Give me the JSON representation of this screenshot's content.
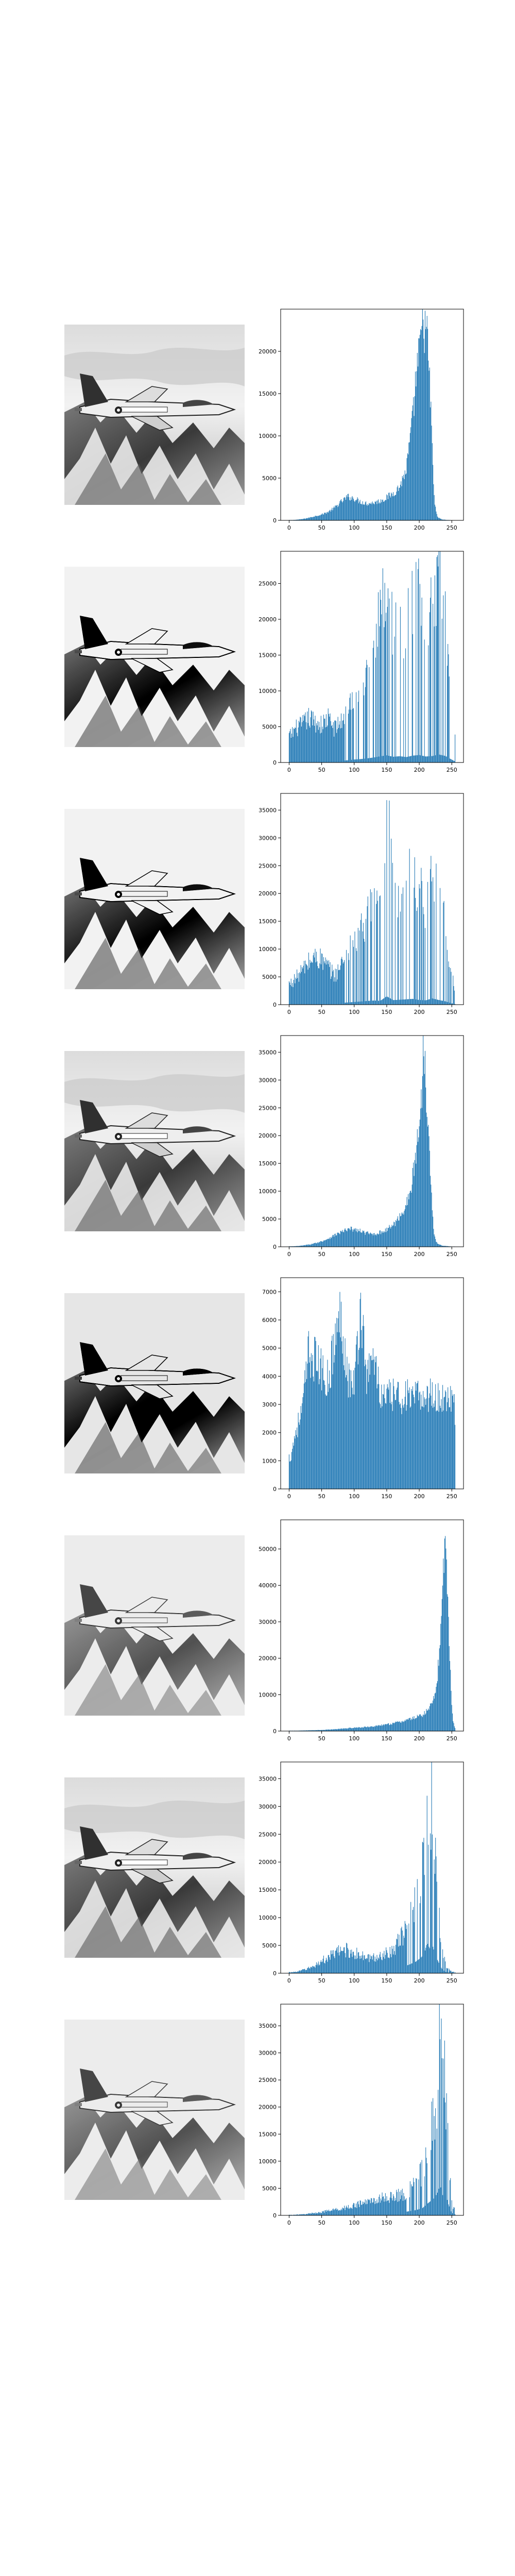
{
  "figure": {
    "background": "#ffffff",
    "bar_color": "#1f77b4",
    "axes_color": "#000000"
  },
  "chart_data": [
    {
      "type": "bar",
      "title": "",
      "xlabel": "",
      "ylabel": "",
      "xlim": [
        -13,
        268
      ],
      "ylim": [
        0,
        25000
      ],
      "xticks": [
        0,
        50,
        100,
        150,
        200,
        250
      ],
      "yticks": [
        0,
        5000,
        10000,
        15000,
        20000
      ],
      "image_style": "original",
      "peaks": [
        [
          5,
          40
        ],
        [
          12,
          80
        ],
        [
          20,
          150
        ],
        [
          30,
          300
        ],
        [
          40,
          500
        ],
        [
          50,
          700
        ],
        [
          60,
          1000
        ],
        [
          70,
          1500
        ],
        [
          80,
          2200
        ],
        [
          90,
          2800
        ],
        [
          100,
          2600
        ],
        [
          110,
          2200
        ],
        [
          120,
          2000
        ],
        [
          130,
          2100
        ],
        [
          140,
          2300
        ],
        [
          150,
          2700
        ],
        [
          160,
          3200
        ],
        [
          170,
          4000
        ],
        [
          180,
          6000
        ],
        [
          190,
          12000
        ],
        [
          195,
          17000
        ],
        [
          200,
          19500
        ],
        [
          203,
          22000
        ],
        [
          206,
          23500
        ],
        [
          209,
          23000
        ],
        [
          212,
          21500
        ],
        [
          215,
          18000
        ],
        [
          218,
          13000
        ],
        [
          221,
          6000
        ],
        [
          224,
          1800
        ],
        [
          228,
          400
        ],
        [
          235,
          100
        ],
        [
          245,
          40
        ],
        [
          255,
          20
        ]
      ],
      "shape": "smooth"
    },
    {
      "type": "bar",
      "title": "",
      "xlabel": "",
      "ylabel": "",
      "xlim": [
        -13,
        268
      ],
      "ylim": [
        0,
        29500
      ],
      "xticks": [
        0,
        50,
        100,
        150,
        200,
        250
      ],
      "yticks": [
        0,
        5000,
        10000,
        15000,
        20000,
        25000
      ],
      "image_style": "high-contrast",
      "peaks": [
        [
          2,
          4000
        ],
        [
          10,
          5000
        ],
        [
          20,
          5500
        ],
        [
          30,
          6500
        ],
        [
          40,
          6000
        ],
        [
          50,
          5500
        ],
        [
          60,
          6500
        ],
        [
          70,
          5000
        ],
        [
          80,
          6000
        ],
        [
          90,
          8000
        ],
        [
          100,
          10500
        ],
        [
          110,
          12000
        ],
        [
          120,
          14500
        ],
        [
          130,
          17500
        ],
        [
          140,
          21500
        ],
        [
          150,
          25000
        ],
        [
          160,
          20000
        ],
        [
          170,
          22000
        ],
        [
          180,
          19000
        ],
        [
          190,
          24000
        ],
        [
          200,
          26000
        ],
        [
          210,
          21000
        ],
        [
          220,
          22500
        ],
        [
          230,
          28000
        ],
        [
          240,
          23000
        ],
        [
          250,
          10000
        ],
        [
          255,
          4000
        ]
      ],
      "shape": "spiky"
    },
    {
      "type": "bar",
      "title": "",
      "xlabel": "",
      "ylabel": "",
      "xlim": [
        -13,
        268
      ],
      "ylim": [
        0,
        38000
      ],
      "xticks": [
        0,
        50,
        100,
        150,
        200,
        250
      ],
      "yticks": [
        0,
        5000,
        10000,
        15000,
        20000,
        25000,
        30000,
        35000
      ],
      "image_style": "high-contrast",
      "peaks": [
        [
          2,
          4000
        ],
        [
          10,
          5000
        ],
        [
          20,
          6500
        ],
        [
          30,
          8000
        ],
        [
          40,
          9000
        ],
        [
          50,
          8500
        ],
        [
          60,
          7000
        ],
        [
          70,
          5500
        ],
        [
          80,
          7500
        ],
        [
          90,
          10000
        ],
        [
          100,
          12000
        ],
        [
          110,
          14000
        ],
        [
          120,
          16500
        ],
        [
          130,
          18500
        ],
        [
          140,
          17000
        ],
        [
          150,
          37500
        ],
        [
          160,
          20500
        ],
        [
          170,
          22000
        ],
        [
          180,
          24000
        ],
        [
          190,
          26000
        ],
        [
          200,
          21000
        ],
        [
          210,
          19500
        ],
        [
          220,
          28000
        ],
        [
          230,
          21000
        ],
        [
          240,
          15000
        ],
        [
          250,
          6000
        ],
        [
          255,
          3000
        ]
      ],
      "shape": "spiky"
    },
    {
      "type": "bar",
      "title": "",
      "xlabel": "",
      "ylabel": "",
      "xlim": [
        -13,
        268
      ],
      "ylim": [
        0,
        38000
      ],
      "xticks": [
        0,
        50,
        100,
        150,
        200,
        250
      ],
      "yticks": [
        0,
        5000,
        10000,
        15000,
        20000,
        25000,
        30000,
        35000
      ],
      "image_style": "original",
      "peaks": [
        [
          5,
          80
        ],
        [
          15,
          150
        ],
        [
          25,
          300
        ],
        [
          35,
          500
        ],
        [
          45,
          800
        ],
        [
          55,
          1200
        ],
        [
          65,
          1800
        ],
        [
          75,
          2400
        ],
        [
          85,
          2900
        ],
        [
          95,
          3200
        ],
        [
          105,
          3000
        ],
        [
          115,
          2600
        ],
        [
          125,
          2300
        ],
        [
          135,
          2400
        ],
        [
          145,
          2800
        ],
        [
          155,
          3500
        ],
        [
          165,
          4500
        ],
        [
          175,
          6500
        ],
        [
          185,
          9000
        ],
        [
          192,
          14000
        ],
        [
          198,
          20000
        ],
        [
          203,
          26000
        ],
        [
          207,
          37500
        ],
        [
          210,
          30000
        ],
        [
          213,
          25000
        ],
        [
          216,
          18000
        ],
        [
          219,
          9000
        ],
        [
          222,
          3000
        ],
        [
          226,
          800
        ],
        [
          235,
          200
        ],
        [
          250,
          50
        ]
      ],
      "shape": "smooth"
    },
    {
      "type": "bar",
      "title": "",
      "xlabel": "",
      "ylabel": "",
      "xlim": [
        -13,
        268
      ],
      "ylim": [
        0,
        7500
      ],
      "xticks": [
        0,
        50,
        100,
        150,
        200,
        250
      ],
      "yticks": [
        0,
        1000,
        2000,
        3000,
        4000,
        5000,
        6000,
        7000
      ],
      "image_style": "equalized",
      "peaks": [
        [
          2,
          1200
        ],
        [
          10,
          2200
        ],
        [
          20,
          3000
        ],
        [
          30,
          5200
        ],
        [
          40,
          5000
        ],
        [
          50,
          4500
        ],
        [
          60,
          4200
        ],
        [
          70,
          5600
        ],
        [
          80,
          6800
        ],
        [
          90,
          4300
        ],
        [
          100,
          4000
        ],
        [
          110,
          7000
        ],
        [
          120,
          4200
        ],
        [
          130,
          5200
        ],
        [
          140,
          3600
        ],
        [
          150,
          3500
        ],
        [
          160,
          3600
        ],
        [
          170,
          3500
        ],
        [
          180,
          3600
        ],
        [
          190,
          3400
        ],
        [
          200,
          3600
        ],
        [
          210,
          3500
        ],
        [
          220,
          3700
        ],
        [
          230,
          3400
        ],
        [
          240,
          3600
        ],
        [
          250,
          3500
        ],
        [
          255,
          3000
        ]
      ],
      "shape": "equalized"
    },
    {
      "type": "bar",
      "title": "",
      "xlabel": "",
      "ylabel": "",
      "xlim": [
        -13,
        268
      ],
      "ylim": [
        0,
        58000
      ],
      "xticks": [
        0,
        50,
        100,
        150,
        200,
        250
      ],
      "yticks": [
        0,
        10000,
        20000,
        30000,
        40000,
        50000
      ],
      "image_style": "bright",
      "peaks": [
        [
          10,
          100
        ],
        [
          30,
          200
        ],
        [
          50,
          300
        ],
        [
          70,
          500
        ],
        [
          90,
          800
        ],
        [
          110,
          1000
        ],
        [
          130,
          1300
        ],
        [
          150,
          1800
        ],
        [
          170,
          2500
        ],
        [
          190,
          3500
        ],
        [
          205,
          4500
        ],
        [
          215,
          6000
        ],
        [
          222,
          9000
        ],
        [
          228,
          15000
        ],
        [
          232,
          25000
        ],
        [
          236,
          40000
        ],
        [
          240,
          55000
        ],
        [
          243,
          42000
        ],
        [
          246,
          25000
        ],
        [
          249,
          10000
        ],
        [
          252,
          3000
        ],
        [
          255,
          800
        ]
      ],
      "shape": "smooth"
    },
    {
      "type": "bar",
      "title": "",
      "xlabel": "",
      "ylabel": "",
      "xlim": [
        -13,
        268
      ],
      "ylim": [
        0,
        38000
      ],
      "xticks": [
        0,
        50,
        100,
        150,
        200,
        250
      ],
      "yticks": [
        0,
        5000,
        10000,
        15000,
        20000,
        25000,
        30000,
        35000
      ],
      "image_style": "original",
      "peaks": [
        [
          5,
          200
        ],
        [
          15,
          400
        ],
        [
          25,
          800
        ],
        [
          35,
          1200
        ],
        [
          45,
          2000
        ],
        [
          55,
          2800
        ],
        [
          65,
          3500
        ],
        [
          75,
          4200
        ],
        [
          85,
          4800
        ],
        [
          95,
          4300
        ],
        [
          105,
          3800
        ],
        [
          115,
          3200
        ],
        [
          125,
          3000
        ],
        [
          135,
          3200
        ],
        [
          145,
          3800
        ],
        [
          155,
          4500
        ],
        [
          165,
          5500
        ],
        [
          175,
          7500
        ],
        [
          185,
          10500
        ],
        [
          195,
          14000
        ],
        [
          203,
          19000
        ],
        [
          208,
          24000
        ],
        [
          212,
          37000
        ],
        [
          216,
          30000
        ],
        [
          220,
          35000
        ],
        [
          224,
          22000
        ],
        [
          228,
          16000
        ],
        [
          232,
          9000
        ],
        [
          236,
          4000
        ],
        [
          242,
          1200
        ],
        [
          250,
          300
        ]
      ],
      "shape": "comb"
    },
    {
      "type": "bar",
      "title": "",
      "xlabel": "",
      "ylabel": "",
      "xlim": [
        -13,
        268
      ],
      "ylim": [
        0,
        39000
      ],
      "xticks": [
        0,
        50,
        100,
        150,
        200,
        250
      ],
      "yticks": [
        0,
        5000,
        10000,
        15000,
        20000,
        25000,
        30000,
        35000
      ],
      "image_style": "bright",
      "peaks": [
        [
          5,
          100
        ],
        [
          20,
          200
        ],
        [
          40,
          500
        ],
        [
          60,
          900
        ],
        [
          80,
          1400
        ],
        [
          100,
          2000
        ],
        [
          120,
          2800
        ],
        [
          140,
          3500
        ],
        [
          160,
          3800
        ],
        [
          180,
          4500
        ],
        [
          195,
          6500
        ],
        [
          205,
          9000
        ],
        [
          212,
          14000
        ],
        [
          218,
          18000
        ],
        [
          224,
          22000
        ],
        [
          228,
          28000
        ],
        [
          232,
          37500
        ],
        [
          236,
          25000
        ],
        [
          240,
          28000
        ],
        [
          244,
          16000
        ],
        [
          248,
          6000
        ],
        [
          252,
          1500
        ]
      ],
      "shape": "comb"
    }
  ]
}
